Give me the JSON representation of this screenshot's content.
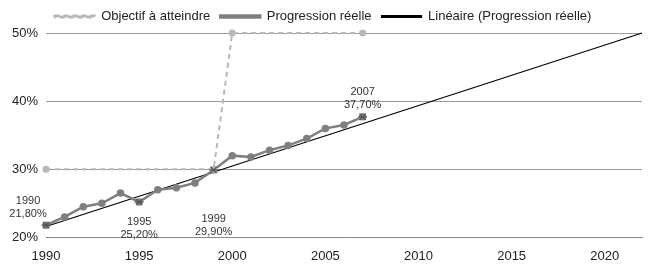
{
  "chart_data": {
    "type": "line",
    "series": [
      {
        "name": "Objectif à atteindre",
        "color": "#b8b8b8",
        "line_style": "dashed",
        "marker": "circle",
        "x": [
          1990,
          1999,
          2000,
          2007
        ],
        "values": [
          30,
          30,
          50,
          50
        ]
      },
      {
        "name": "Progression réelle",
        "color": "#7f7f7f",
        "line_style": "solid",
        "marker": "circle",
        "x": [
          1990,
          1991,
          1992,
          1993,
          1994,
          1995,
          1996,
          1997,
          1998,
          1999,
          2000,
          2001,
          2002,
          2003,
          2004,
          2005,
          2006,
          2007
        ],
        "values": [
          21.8,
          23,
          24.5,
          25,
          26.5,
          25.2,
          27,
          27.3,
          28,
          29.9,
          32,
          31.8,
          32.8,
          33.5,
          34.5,
          36,
          36.5,
          37.7
        ]
      },
      {
        "name": "Linéaire (Progression réelle)",
        "color": "#000000",
        "line_style": "solid",
        "marker": "none",
        "x": [
          1990,
          2022
        ],
        "values": [
          21.6,
          50
        ]
      }
    ],
    "xlim": [
      1990,
      2022
    ],
    "xticks": [
      1990,
      1995,
      2000,
      2005,
      2010,
      2015,
      2020
    ],
    "ylim": [
      20,
      50
    ],
    "yticks": [
      {
        "value": 20,
        "label": "20%"
      },
      {
        "value": 30,
        "label": "30%"
      },
      {
        "value": 40,
        "label": "40%"
      },
      {
        "value": 50,
        "label": "50%"
      }
    ],
    "grid": "y",
    "legend": "top",
    "annotations": [
      {
        "x": 1990,
        "y": 21.8,
        "text": [
          "1990",
          "21,80%"
        ]
      },
      {
        "x": 1995,
        "y": 25.2,
        "text": [
          "1995",
          "25,20%"
        ]
      },
      {
        "x": 1999,
        "y": 29.9,
        "text": [
          "1999",
          "29,90%"
        ]
      },
      {
        "x": 2007,
        "y": 37.7,
        "text": [
          "2007",
          "37,70%"
        ]
      }
    ]
  }
}
